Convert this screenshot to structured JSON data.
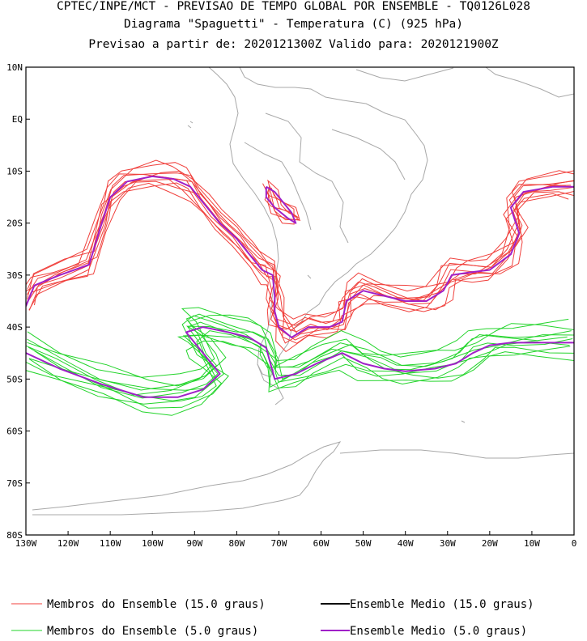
{
  "title": {
    "line1": "CPTEC/INPE/MCT - PREVISAO DE TEMPO GLOBAL POR ENSEMBLE - TQ0126L028",
    "line2": "Diagrama \"Spaguetti\" - Temperatura (C) (925 hPa)",
    "line3": "Previsao a partir de: 2020121300Z  Valido para: 2020121900Z"
  },
  "chart_data": {
    "type": "line",
    "xlim": [
      -130,
      0
    ],
    "ylim": [
      -80,
      10
    ],
    "x_ticks": [
      {
        "v": -130,
        "label": "130W"
      },
      {
        "v": -120,
        "label": "120W"
      },
      {
        "v": -110,
        "label": "110W"
      },
      {
        "v": -100,
        "label": "100W"
      },
      {
        "v": -90,
        "label": "90W"
      },
      {
        "v": -80,
        "label": "80W"
      },
      {
        "v": -70,
        "label": "70W"
      },
      {
        "v": -60,
        "label": "60W"
      },
      {
        "v": -50,
        "label": "50W"
      },
      {
        "v": -40,
        "label": "40W"
      },
      {
        "v": -30,
        "label": "30W"
      },
      {
        "v": -20,
        "label": "20W"
      },
      {
        "v": -10,
        "label": "10W"
      },
      {
        "v": 0,
        "label": "0"
      }
    ],
    "y_ticks": [
      {
        "v": 10,
        "label": "10N"
      },
      {
        "v": 0,
        "label": "EQ"
      },
      {
        "v": -10,
        "label": "10S"
      },
      {
        "v": -20,
        "label": "20S"
      },
      {
        "v": -30,
        "label": "30S"
      },
      {
        "v": -40,
        "label": "40S"
      },
      {
        "v": -50,
        "label": "50S"
      },
      {
        "v": -60,
        "label": "60S"
      },
      {
        "v": -70,
        "label": "70S"
      },
      {
        "v": -80,
        "label": "80S"
      }
    ],
    "colors": {
      "members15": "#f0403c",
      "mean15": "#000000",
      "members5": "#22d42a",
      "mean5": "#a020c8",
      "coast": "#a8a8a8"
    },
    "series": [
      {
        "name": "Ensemble Medio (15.0 graus)",
        "points": [
          [
            -130,
            -36
          ],
          [
            -128,
            -32
          ],
          [
            -122,
            -30
          ],
          [
            -115,
            -28
          ],
          [
            -112,
            -20
          ],
          [
            -110,
            -15
          ],
          [
            -106,
            -12
          ],
          [
            -100,
            -11
          ],
          [
            -95,
            -11.5
          ],
          [
            -91,
            -13
          ],
          [
            -88,
            -16
          ],
          [
            -84,
            -20
          ],
          [
            -80,
            -23
          ],
          [
            -77,
            -26
          ],
          [
            -74,
            -29
          ],
          [
            -71.5,
            -30
          ],
          [
            -71,
            -34
          ],
          [
            -71,
            -37
          ],
          [
            -70,
            -40
          ],
          [
            -67,
            -42
          ],
          [
            -63,
            -40
          ],
          [
            -58,
            -40
          ],
          [
            -55,
            -39
          ],
          [
            -54,
            -35
          ],
          [
            -50,
            -33
          ],
          [
            -45,
            -34
          ],
          [
            -40,
            -35
          ],
          [
            -35,
            -35
          ],
          [
            -31,
            -33
          ],
          [
            -29,
            -30
          ],
          [
            -25,
            -29.5
          ],
          [
            -20,
            -29
          ],
          [
            -15,
            -26
          ],
          [
            -13,
            -22
          ],
          [
            -15,
            -17
          ],
          [
            -12,
            -14
          ],
          [
            -5,
            -13
          ],
          [
            0,
            -13
          ]
        ]
      },
      {
        "name": "Ensemble Medio (15.0 graus)",
        "points": [
          [
            -73,
            -13
          ],
          [
            -71,
            -14
          ],
          [
            -69,
            -16
          ],
          [
            -67,
            -18
          ],
          [
            -66,
            -20
          ],
          [
            -68,
            -19
          ],
          [
            -71,
            -17
          ],
          [
            -73,
            -15
          ],
          [
            -73,
            -13
          ]
        ]
      },
      {
        "name": "Ensemble Medio (5.0 graus)",
        "points": [
          [
            -130,
            -45
          ],
          [
            -122,
            -48
          ],
          [
            -112,
            -51
          ],
          [
            -102,
            -53.5
          ],
          [
            -94,
            -53.5
          ],
          [
            -88,
            -52
          ],
          [
            -84,
            -49
          ],
          [
            -87,
            -46
          ],
          [
            -90,
            -43
          ],
          [
            -92,
            -41
          ],
          [
            -88,
            -40
          ],
          [
            -82,
            -41
          ],
          [
            -77,
            -42
          ],
          [
            -73,
            -44
          ],
          [
            -72,
            -47
          ],
          [
            -71,
            -50
          ],
          [
            -66,
            -49
          ],
          [
            -61,
            -47
          ],
          [
            -55,
            -45
          ],
          [
            -50,
            -47
          ],
          [
            -45,
            -48
          ],
          [
            -40,
            -48.5
          ],
          [
            -33,
            -48
          ],
          [
            -28,
            -47
          ],
          [
            -24,
            -45
          ],
          [
            -20,
            -43.5
          ],
          [
            -15,
            -43
          ],
          [
            -8,
            -43
          ],
          [
            0,
            -43
          ]
        ]
      }
    ],
    "legend": [
      {
        "label": "Membros do Ensemble (15.0 graus)",
        "color": "#f0403c"
      },
      {
        "label": "Ensemble Medio (15.0 graus)",
        "color": "#000000"
      },
      {
        "label": "Membros do Ensemble (5.0 graus)",
        "color": "#22d42a"
      },
      {
        "label": "Ensemble Medio (5.0 graus)",
        "color": "#a020c8"
      }
    ],
    "legend_placement": "bottom",
    "grid": false
  }
}
